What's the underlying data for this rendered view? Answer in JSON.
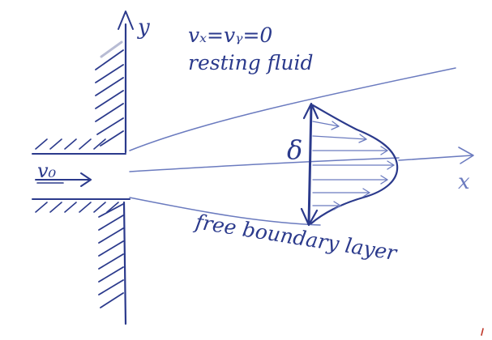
{
  "diagram": {
    "type": "handwritten-sketch",
    "ink_color": "#2b3a8c",
    "light_ink_color": "#6b7bbf",
    "accent_color": "#c0392b"
  },
  "labels": {
    "axis_y": "y",
    "axis_x": "x",
    "inlet_velocity": "v₀",
    "velocity_condition": "vₓ=vᵧ=0",
    "resting_fluid": "resting fluid",
    "thickness": "δ",
    "free_boundary_layer": "free boundary layer"
  }
}
